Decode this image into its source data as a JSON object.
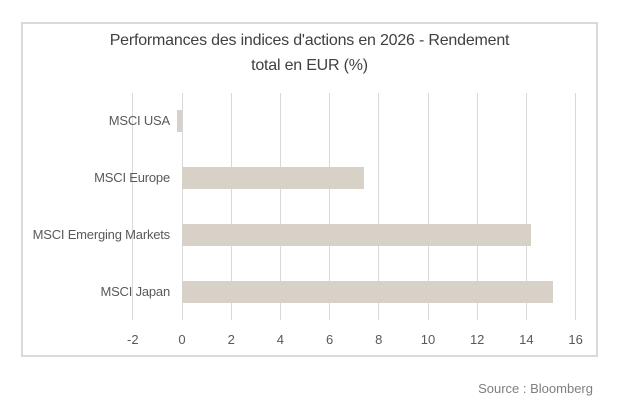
{
  "chart_data": {
    "type": "bar",
    "orientation": "horizontal",
    "title": "Performances des indices d'actions en 2026 - Rendement total en EUR (%)",
    "title_lines": [
      "Performances des indices d'actions en 2026 - Rendement",
      "total en EUR (%)"
    ],
    "categories": [
      "MSCI USA",
      "MSCI Europe",
      "MSCI Emerging Markets",
      "MSCI Japan"
    ],
    "values": [
      -0.2,
      7.4,
      14.2,
      15.1
    ],
    "xlabel": "",
    "ylabel": "",
    "xlim": [
      -2,
      16
    ],
    "xticks": [
      -2,
      0,
      2,
      4,
      6,
      8,
      10,
      12,
      14,
      16
    ],
    "grid": true,
    "legend": false,
    "bar_color": "#d8d1c8"
  },
  "source": {
    "label": "Source : Bloomberg"
  },
  "colors": {
    "border_and_grid": "#d9d9d9",
    "title_text": "#404040",
    "axis_text": "#595959",
    "source_text": "#7f7f7f",
    "background": "#ffffff"
  }
}
